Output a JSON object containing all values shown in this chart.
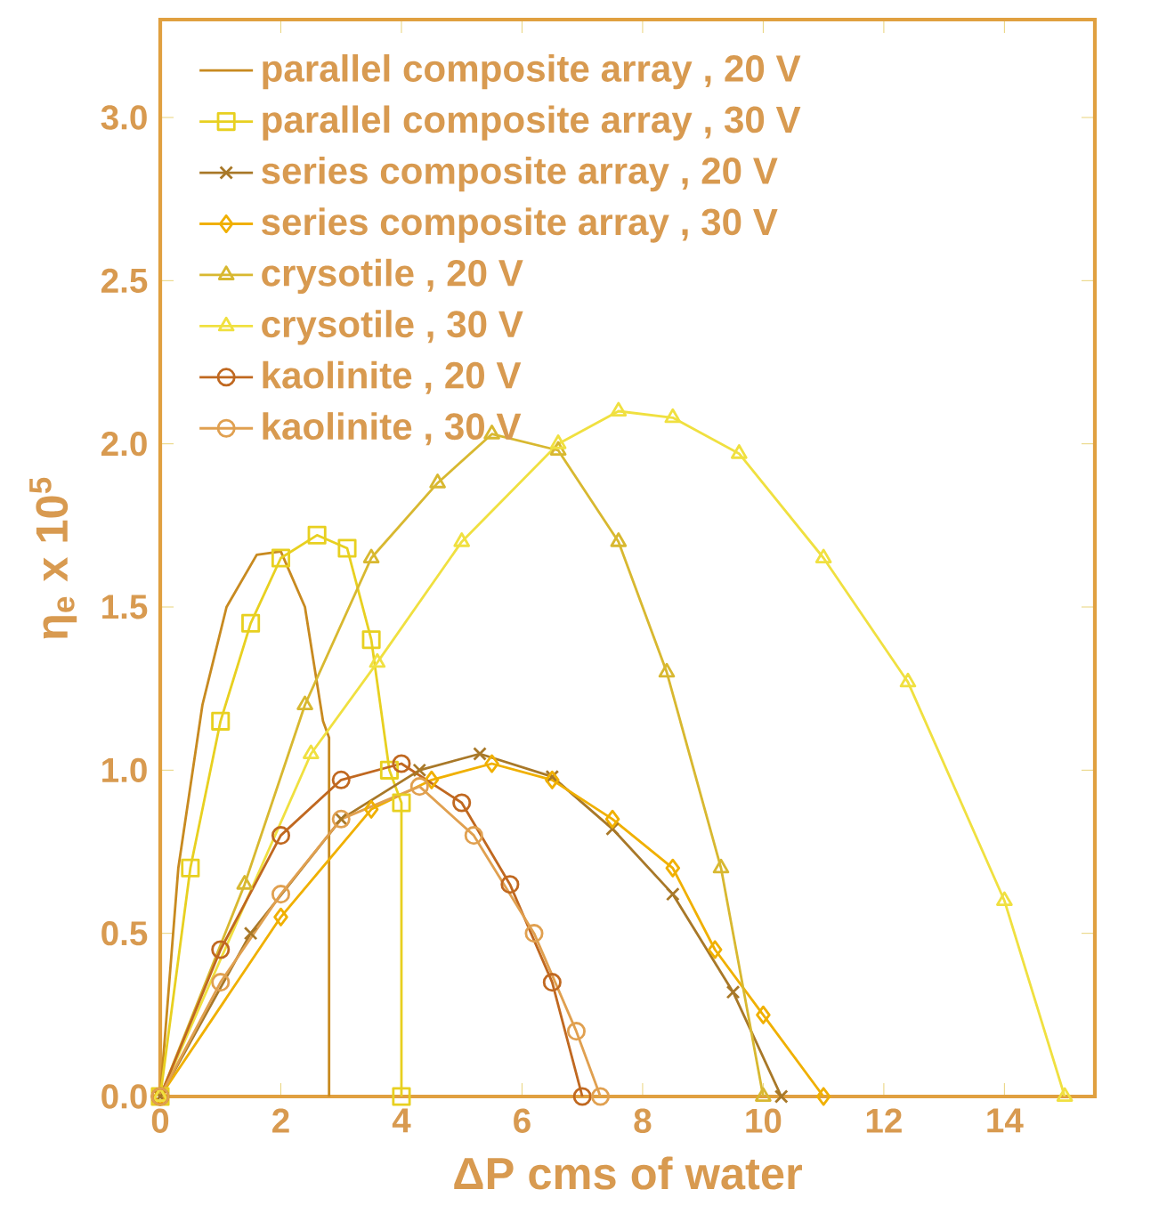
{
  "chart_data": {
    "type": "line",
    "xlabel": "ΔP cms of water",
    "ylabel": "η$_{e}$ x 10$^{5}$",
    "xlim": [
      0,
      15.5
    ],
    "ylim": [
      0,
      3.3
    ],
    "xticks": [
      0,
      2,
      4,
      6,
      8,
      10,
      12,
      14
    ],
    "yticks": [
      {
        "value": 0,
        "label": "0.0"
      },
      {
        "value": 0.5,
        "label": "0.5"
      },
      {
        "value": 1.0,
        "label": "1.0"
      },
      {
        "value": 1.5,
        "label": "1.5"
      },
      {
        "value": 2.0,
        "label": "2.0"
      },
      {
        "value": 2.5,
        "label": "2.5"
      },
      {
        "value": 3.0,
        "label": "3.0"
      }
    ],
    "legend": "top left",
    "grid": false,
    "series": [
      {
        "name": "parallel composite array , 20 V",
        "color": "#c88a20",
        "marker": "none",
        "x": [
          0,
          0.3,
          0.7,
          1.1,
          1.6,
          2.0,
          2.4,
          2.7,
          2.8,
          2.8
        ],
        "values": [
          0,
          0.7,
          1.2,
          1.5,
          1.66,
          1.67,
          1.5,
          1.15,
          1.1,
          0
        ]
      },
      {
        "name": "parallel composite array , 30 V",
        "color": "#e8d020",
        "marker": "square",
        "x": [
          0,
          0.5,
          1.0,
          1.5,
          2.0,
          2.6,
          3.1,
          3.5,
          3.8,
          4.0,
          4.0
        ],
        "values": [
          0,
          0.7,
          1.15,
          1.45,
          1.65,
          1.72,
          1.68,
          1.4,
          1.0,
          0.9,
          0
        ]
      },
      {
        "name": "series composite array , 20 V",
        "color": "#a87828",
        "marker": "cross",
        "x": [
          0,
          1.5,
          3,
          4.3,
          5.3,
          6.5,
          7.5,
          8.5,
          9.5,
          10.3
        ],
        "values": [
          0,
          0.5,
          0.85,
          1.0,
          1.05,
          0.98,
          0.82,
          0.62,
          0.32,
          0
        ]
      },
      {
        "name": "series composite array , 30 V",
        "color": "#f0b000",
        "marker": "diamond",
        "x": [
          0,
          2,
          3.5,
          4.5,
          5.5,
          6.5,
          7.5,
          8.5,
          9.2,
          10,
          11
        ],
        "values": [
          0,
          0.55,
          0.88,
          0.97,
          1.02,
          0.97,
          0.85,
          0.7,
          0.45,
          0.25,
          0
        ]
      },
      {
        "name": "crysotile , 20 V",
        "color": "#d8b830",
        "marker": "triangle",
        "x": [
          0,
          1.4,
          2.4,
          3.5,
          4.6,
          5.5,
          6.6,
          7.6,
          8.4,
          9.3,
          10
        ],
        "values": [
          0,
          0.65,
          1.2,
          1.65,
          1.88,
          2.03,
          1.98,
          1.7,
          1.3,
          0.7,
          0
        ]
      },
      {
        "name": "crysotile , 30 V",
        "color": "#f0e040",
        "marker": "triangle",
        "x": [
          0,
          2.5,
          3.6,
          5.0,
          6.6,
          7.6,
          8.5,
          9.6,
          11,
          12.4,
          14,
          15
        ],
        "values": [
          0,
          1.05,
          1.33,
          1.7,
          2.0,
          2.1,
          2.08,
          1.97,
          1.65,
          1.27,
          0.6,
          0
        ]
      },
      {
        "name": "kaolinite , 20 V",
        "color": "#c06820",
        "marker": "circle",
        "x": [
          0,
          1,
          2,
          3,
          4,
          5,
          5.8,
          6.5,
          7.0
        ],
        "values": [
          0,
          0.45,
          0.8,
          0.97,
          1.02,
          0.9,
          0.65,
          0.35,
          0
        ]
      },
      {
        "name": "kaolinite , 30 V",
        "color": "#e0a050",
        "marker": "circle",
        "x": [
          0,
          1,
          2,
          3,
          4.3,
          5.2,
          6.2,
          6.9,
          7.3
        ],
        "values": [
          0,
          0.35,
          0.62,
          0.85,
          0.95,
          0.8,
          0.5,
          0.2,
          0
        ]
      }
    ]
  }
}
